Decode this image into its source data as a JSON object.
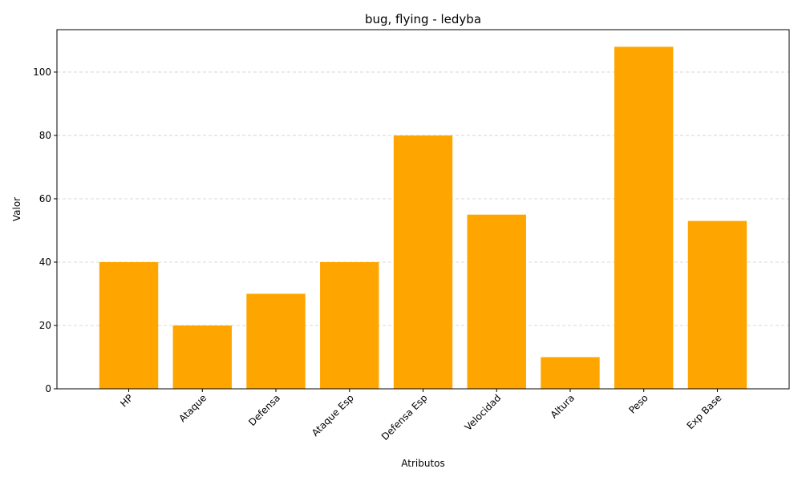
{
  "chart_data": {
    "type": "bar",
    "title": "bug, flying - ledyba",
    "xlabel": "Atributos",
    "ylabel": "Valor",
    "categories": [
      "HP",
      "Ataque",
      "Defensa",
      "Ataque Esp",
      "Defensa Esp",
      "Velocidad",
      "Altura",
      "Peso",
      "Exp Base"
    ],
    "values": [
      40,
      20,
      30,
      40,
      80,
      55,
      10,
      108,
      53
    ],
    "ylim": [
      0,
      113.4
    ],
    "yticks": [
      0,
      20,
      40,
      60,
      80,
      100
    ],
    "grid": "y-dashed",
    "bar_color": "#FFA500",
    "grid_color": "#cccccc",
    "legend": "none"
  }
}
